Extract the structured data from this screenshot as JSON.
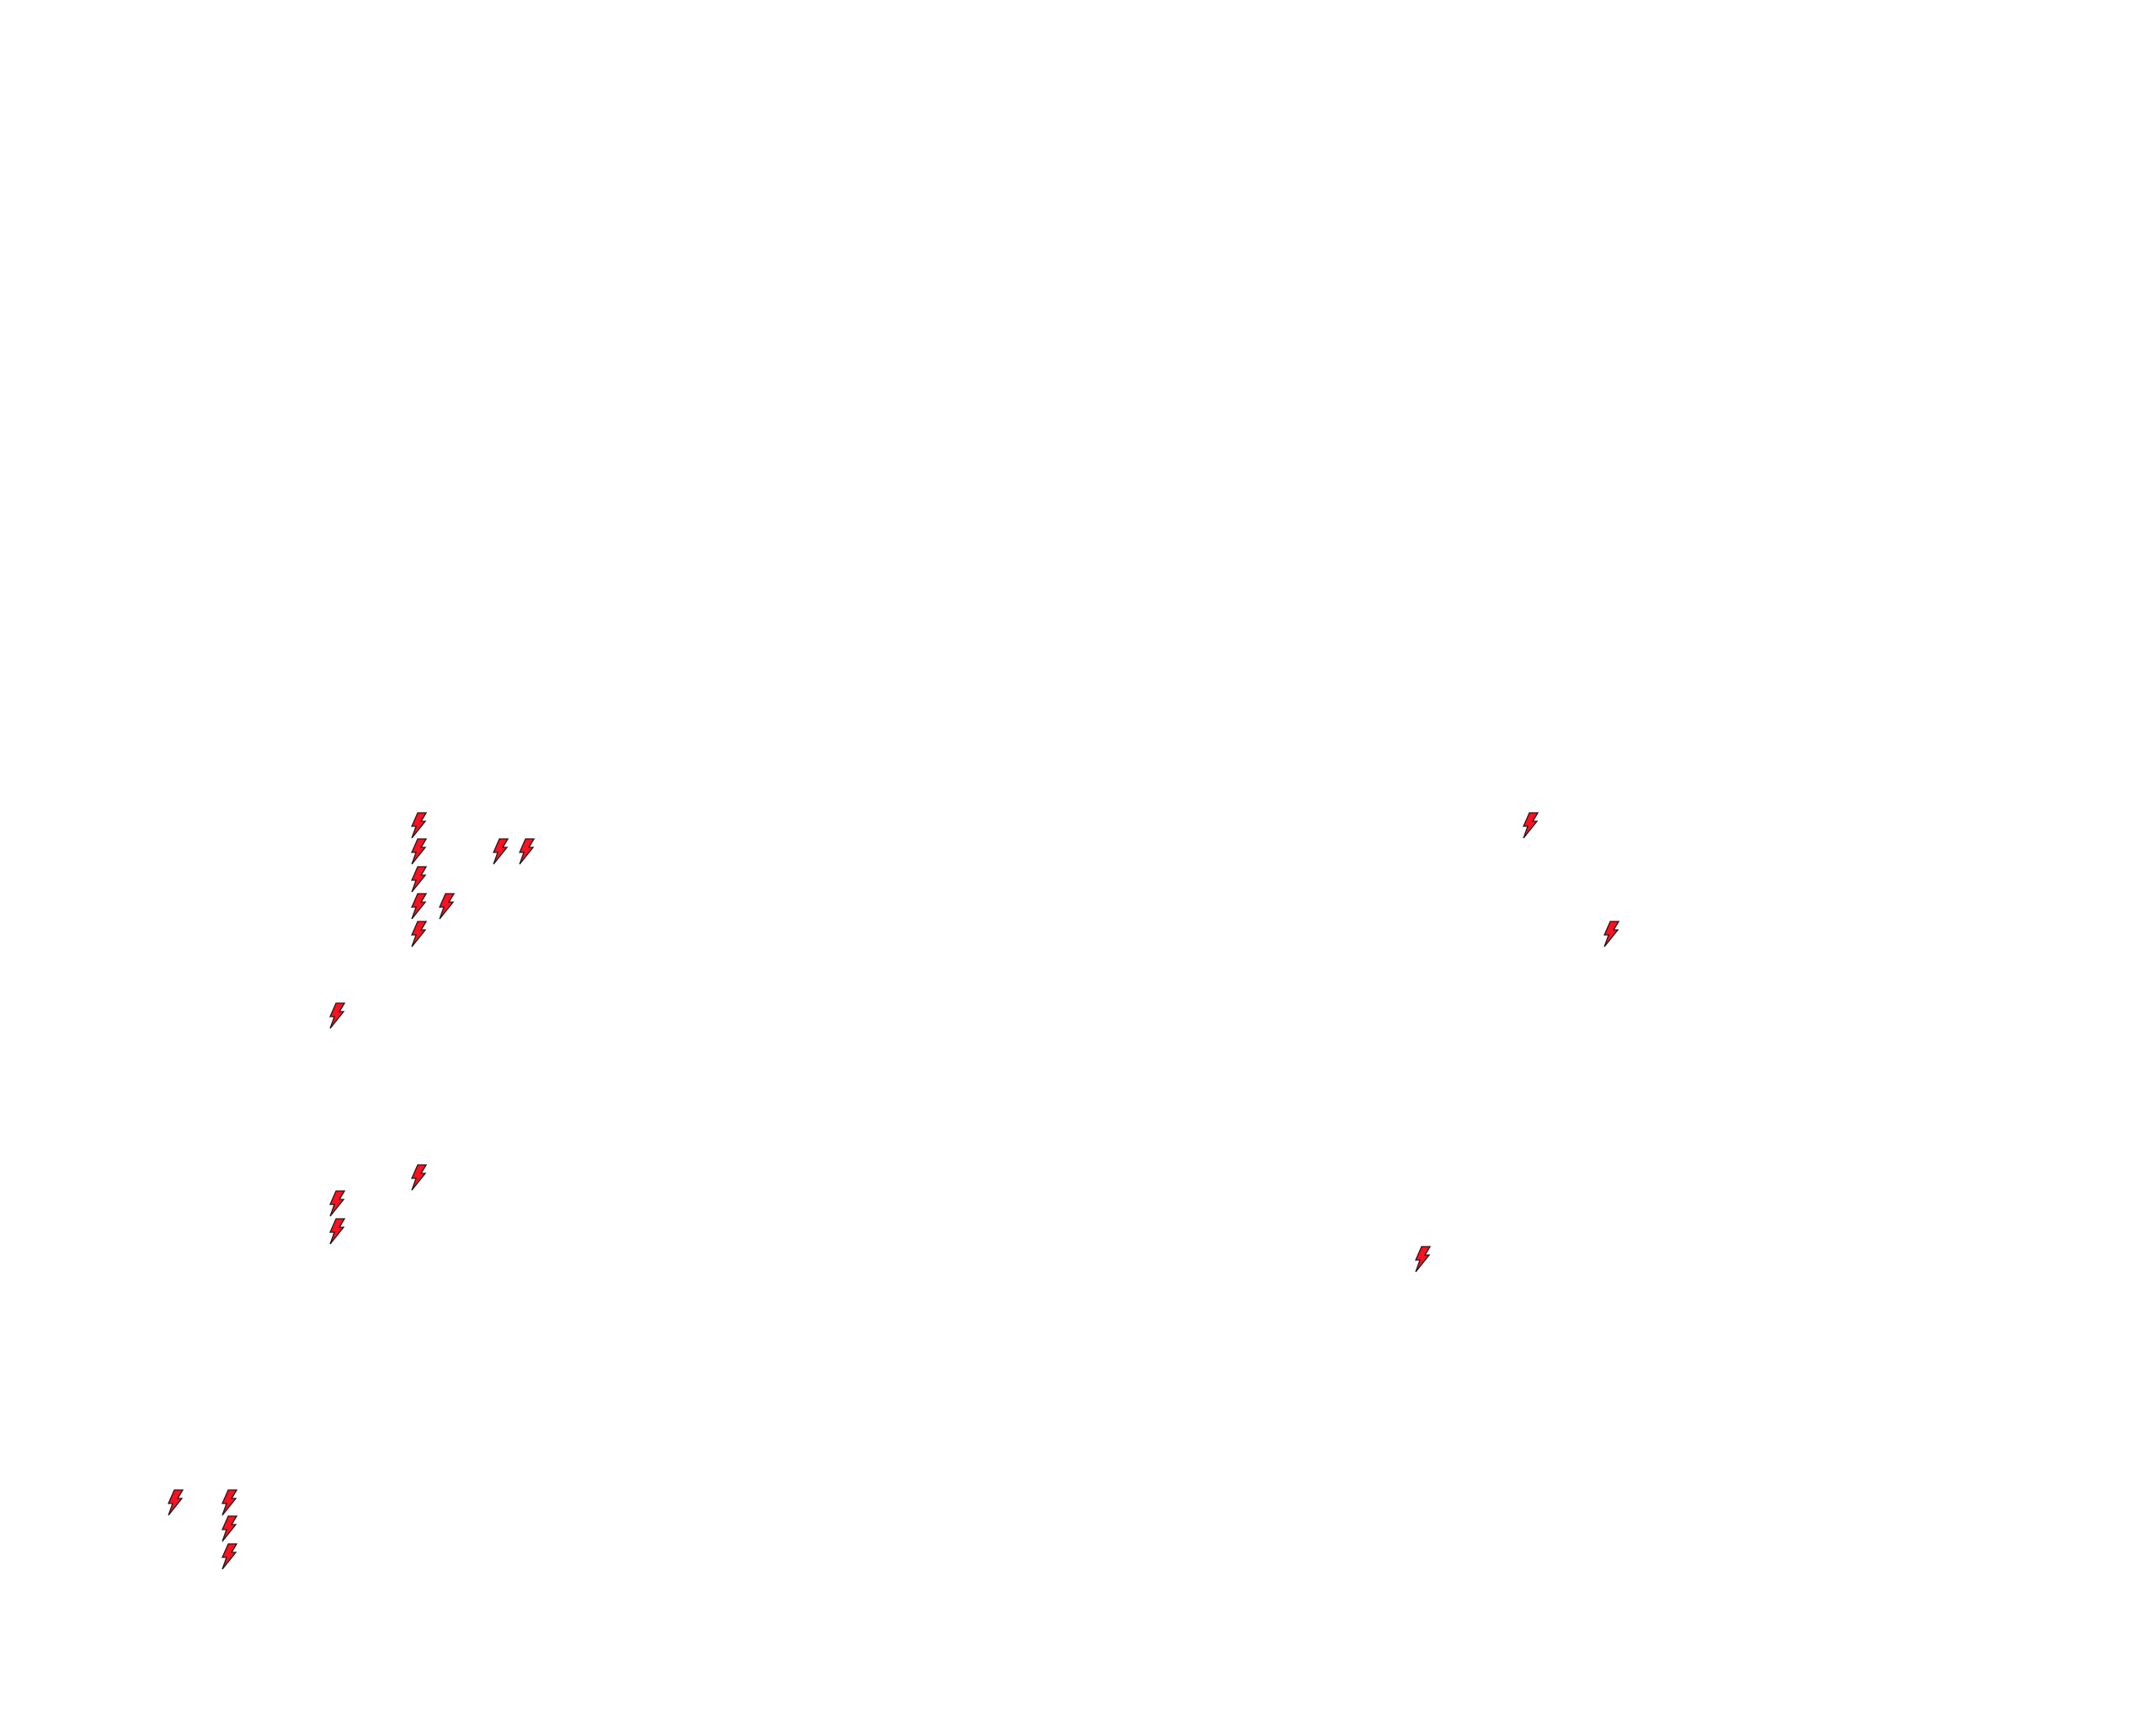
{
  "canvas": {
    "background": "#ffffff"
  },
  "icons": {
    "type": "lightning-bolt-icon",
    "fill_color": "#ff1020",
    "stroke_color": "#1a1a1a",
    "count": 19
  }
}
